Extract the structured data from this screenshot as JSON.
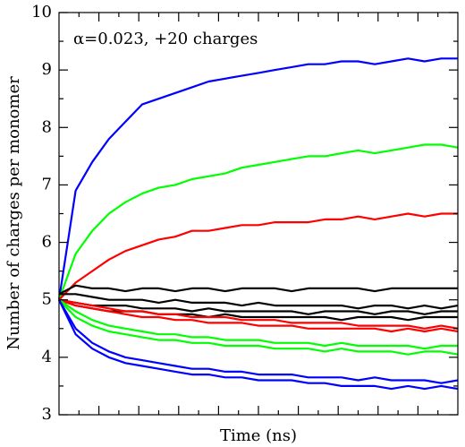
{
  "chart_data": {
    "type": "line",
    "annotation": "α=0.023, +20 charges",
    "x_label": "Time (ns)",
    "y_label": "Number of charges per monomer",
    "categories": [
      null,
      null,
      null,
      null,
      null,
      null,
      null,
      null,
      null,
      null,
      null,
      null,
      null,
      null,
      null,
      null,
      null,
      null,
      null,
      null,
      null,
      null,
      null,
      null,
      null
    ],
    "ylim": [
      3,
      10
    ],
    "yticks": [
      3,
      4,
      5,
      6,
      7,
      8,
      9,
      10
    ],
    "series": [
      {
        "color": "#0000ff",
        "values": [
          5.0,
          6.9,
          7.4,
          7.8,
          8.1,
          8.4,
          8.5,
          8.6,
          8.7,
          8.8,
          8.85,
          8.9,
          8.95,
          9.0,
          9.05,
          9.1,
          9.1,
          9.15,
          9.15,
          9.1,
          9.15,
          9.2,
          9.15,
          9.2,
          9.2
        ]
      },
      {
        "color": "#00ff00",
        "values": [
          5.0,
          5.8,
          6.2,
          6.5,
          6.7,
          6.85,
          6.95,
          7.0,
          7.1,
          7.15,
          7.2,
          7.3,
          7.35,
          7.4,
          7.45,
          7.5,
          7.5,
          7.55,
          7.6,
          7.55,
          7.6,
          7.65,
          7.7,
          7.7,
          7.65
        ]
      },
      {
        "color": "#ff0000",
        "values": [
          5.0,
          5.3,
          5.5,
          5.7,
          5.85,
          5.95,
          6.05,
          6.1,
          6.2,
          6.2,
          6.25,
          6.3,
          6.3,
          6.35,
          6.35,
          6.35,
          6.4,
          6.4,
          6.45,
          6.4,
          6.45,
          6.5,
          6.45,
          6.5,
          6.5
        ]
      },
      {
        "color": "#000000",
        "values": [
          5.1,
          5.25,
          5.2,
          5.2,
          5.15,
          5.2,
          5.2,
          5.15,
          5.2,
          5.2,
          5.15,
          5.2,
          5.2,
          5.2,
          5.15,
          5.2,
          5.2,
          5.2,
          5.2,
          5.15,
          5.2,
          5.2,
          5.2,
          5.2,
          5.2
        ]
      },
      {
        "color": "#000000",
        "values": [
          5.1,
          5.1,
          5.05,
          5.0,
          5.0,
          5.0,
          4.95,
          5.0,
          4.95,
          4.95,
          4.95,
          4.9,
          4.95,
          4.9,
          4.9,
          4.9,
          4.9,
          4.9,
          4.85,
          4.9,
          4.9,
          4.85,
          4.9,
          4.85,
          4.9
        ]
      },
      {
        "color": "#000000",
        "values": [
          5.0,
          4.95,
          4.9,
          4.9,
          4.9,
          4.85,
          4.85,
          4.85,
          4.8,
          4.85,
          4.8,
          4.8,
          4.8,
          4.8,
          4.8,
          4.75,
          4.8,
          4.8,
          4.8,
          4.75,
          4.8,
          4.8,
          4.75,
          4.8,
          4.8
        ]
      },
      {
        "color": "#000000",
        "values": [
          5.0,
          4.9,
          4.85,
          4.8,
          4.8,
          4.8,
          4.75,
          4.75,
          4.75,
          4.7,
          4.75,
          4.7,
          4.7,
          4.7,
          4.7,
          4.7,
          4.7,
          4.65,
          4.7,
          4.7,
          4.7,
          4.65,
          4.7,
          4.7,
          4.7
        ]
      },
      {
        "color": "#ff0000",
        "values": [
          5.0,
          4.9,
          4.85,
          4.8,
          4.75,
          4.7,
          4.7,
          4.65,
          4.65,
          4.6,
          4.6,
          4.6,
          4.55,
          4.55,
          4.55,
          4.5,
          4.5,
          4.5,
          4.5,
          4.5,
          4.45,
          4.5,
          4.45,
          4.5,
          4.45
        ]
      },
      {
        "color": "#ff0000",
        "values": [
          5.0,
          4.95,
          4.9,
          4.85,
          4.8,
          4.8,
          4.75,
          4.75,
          4.7,
          4.7,
          4.7,
          4.65,
          4.65,
          4.65,
          4.6,
          4.6,
          4.6,
          4.6,
          4.55,
          4.55,
          4.55,
          4.55,
          4.5,
          4.55,
          4.5
        ]
      },
      {
        "color": "#00ff00",
        "values": [
          5.0,
          4.7,
          4.55,
          4.45,
          4.4,
          4.35,
          4.3,
          4.3,
          4.25,
          4.25,
          4.2,
          4.2,
          4.2,
          4.15,
          4.15,
          4.15,
          4.1,
          4.15,
          4.1,
          4.1,
          4.1,
          4.05,
          4.1,
          4.1,
          4.05
        ]
      },
      {
        "color": "#00ff00",
        "values": [
          5.0,
          4.8,
          4.65,
          4.55,
          4.5,
          4.45,
          4.4,
          4.4,
          4.35,
          4.35,
          4.3,
          4.3,
          4.3,
          4.25,
          4.25,
          4.25,
          4.2,
          4.25,
          4.2,
          4.2,
          4.2,
          4.2,
          4.15,
          4.2,
          4.2
        ]
      },
      {
        "color": "#0000ff",
        "values": [
          5.0,
          4.5,
          4.25,
          4.1,
          4.0,
          3.95,
          3.9,
          3.85,
          3.8,
          3.8,
          3.75,
          3.75,
          3.7,
          3.7,
          3.7,
          3.65,
          3.65,
          3.65,
          3.6,
          3.65,
          3.6,
          3.6,
          3.6,
          3.55,
          3.6
        ]
      },
      {
        "color": "#0000ff",
        "values": [
          5.0,
          4.4,
          4.15,
          4.0,
          3.9,
          3.85,
          3.8,
          3.75,
          3.7,
          3.7,
          3.65,
          3.65,
          3.6,
          3.6,
          3.6,
          3.55,
          3.55,
          3.5,
          3.5,
          3.5,
          3.45,
          3.5,
          3.45,
          3.5,
          3.45
        ]
      }
    ]
  }
}
